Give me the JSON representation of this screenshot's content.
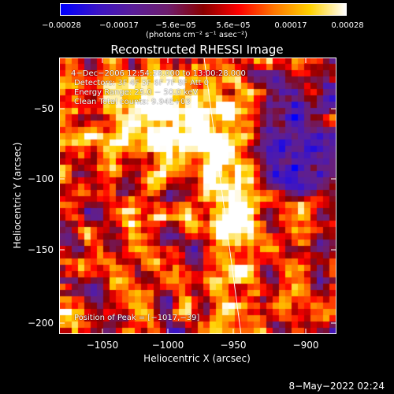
{
  "chart_data": {
    "type": "heatmap",
    "title": "Reconstructed RHESSI Image",
    "xlabel": "Heliocentric X (arcsec)",
    "ylabel": "Heliocentric Y (arcsec)",
    "x_ticks": [
      "−1050",
      "−1000",
      "−950",
      "−900"
    ],
    "y_ticks": [
      "−50",
      "−100",
      "−150",
      "−200"
    ],
    "xlim": [
      -1075,
      -880
    ],
    "ylim": [
      -210,
      -25
    ],
    "colorbar": {
      "ticks": [
        "−0.00028",
        "−0.00017",
        "−5.6e−05",
        "5.6e−05",
        "0.00017",
        "0.00028"
      ],
      "units": "(photons cm⁻² s⁻¹ asec⁻²)",
      "range": [
        -0.00028,
        0.00028
      ],
      "colors": [
        "#0000ff",
        "#3a14c8",
        "#5a1e9a",
        "#6e1e6e",
        "#8a0000",
        "#ff0000",
        "#ff7800",
        "#ffd200",
        "#ffffff"
      ]
    },
    "annotations": [
      "4−Dec−2006 12:54:28.000 to 13:00:28.000",
      "Detectors: 3F 4F 5F 6F 7F 8F  Att 0",
      "Energy Range: 25.0 − 50.0 keV",
      "Clean     Total counts: 9.94E+03",
      "Position of Peak = [−1017,−39]"
    ],
    "peak": [
      -1017,
      -39
    ],
    "limb_line": [
      [
        -973,
        -25
      ],
      [
        -947,
        -210
      ]
    ]
  },
  "footer": {
    "timestamp": "8−May−2022 02:24"
  }
}
